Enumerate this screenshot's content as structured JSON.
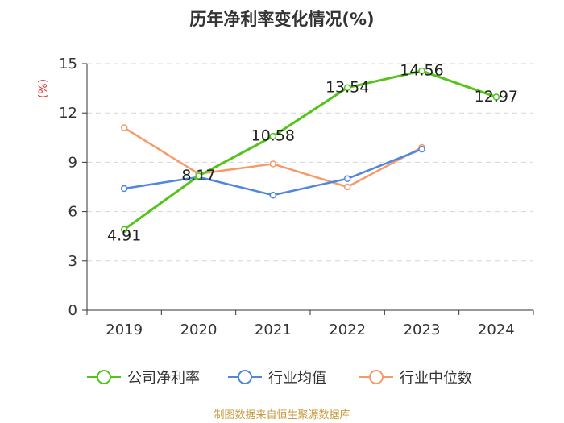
{
  "chart_data": {
    "type": "line",
    "title": "历年净利率变化情况(%)",
    "ylabel": "(%)",
    "xlabel": "",
    "categories": [
      "2019",
      "2020",
      "2021",
      "2022",
      "2023",
      "2024"
    ],
    "ylim": [
      0,
      15
    ],
    "yticks": [
      0,
      3,
      6,
      9,
      12,
      15
    ],
    "grid": "horizontal-dashed",
    "legend_position": "bottom",
    "series": [
      {
        "name": "公司净利率",
        "color": "#52c41a",
        "values": [
          4.91,
          8.17,
          10.58,
          13.54,
          14.56,
          12.97
        ],
        "labels": [
          "4.91",
          "8.17",
          "10.58",
          "13.54",
          "14.56",
          "12.97"
        ]
      },
      {
        "name": "行业均值",
        "color": "#4f86e0",
        "values": [
          7.4,
          8.1,
          7.0,
          8.0,
          9.8,
          null
        ]
      },
      {
        "name": "行业中位数",
        "color": "#f59a6a",
        "values": [
          11.1,
          8.3,
          8.9,
          7.5,
          9.9,
          null
        ]
      }
    ],
    "source": "制图数据来自恒生聚源数据库"
  }
}
